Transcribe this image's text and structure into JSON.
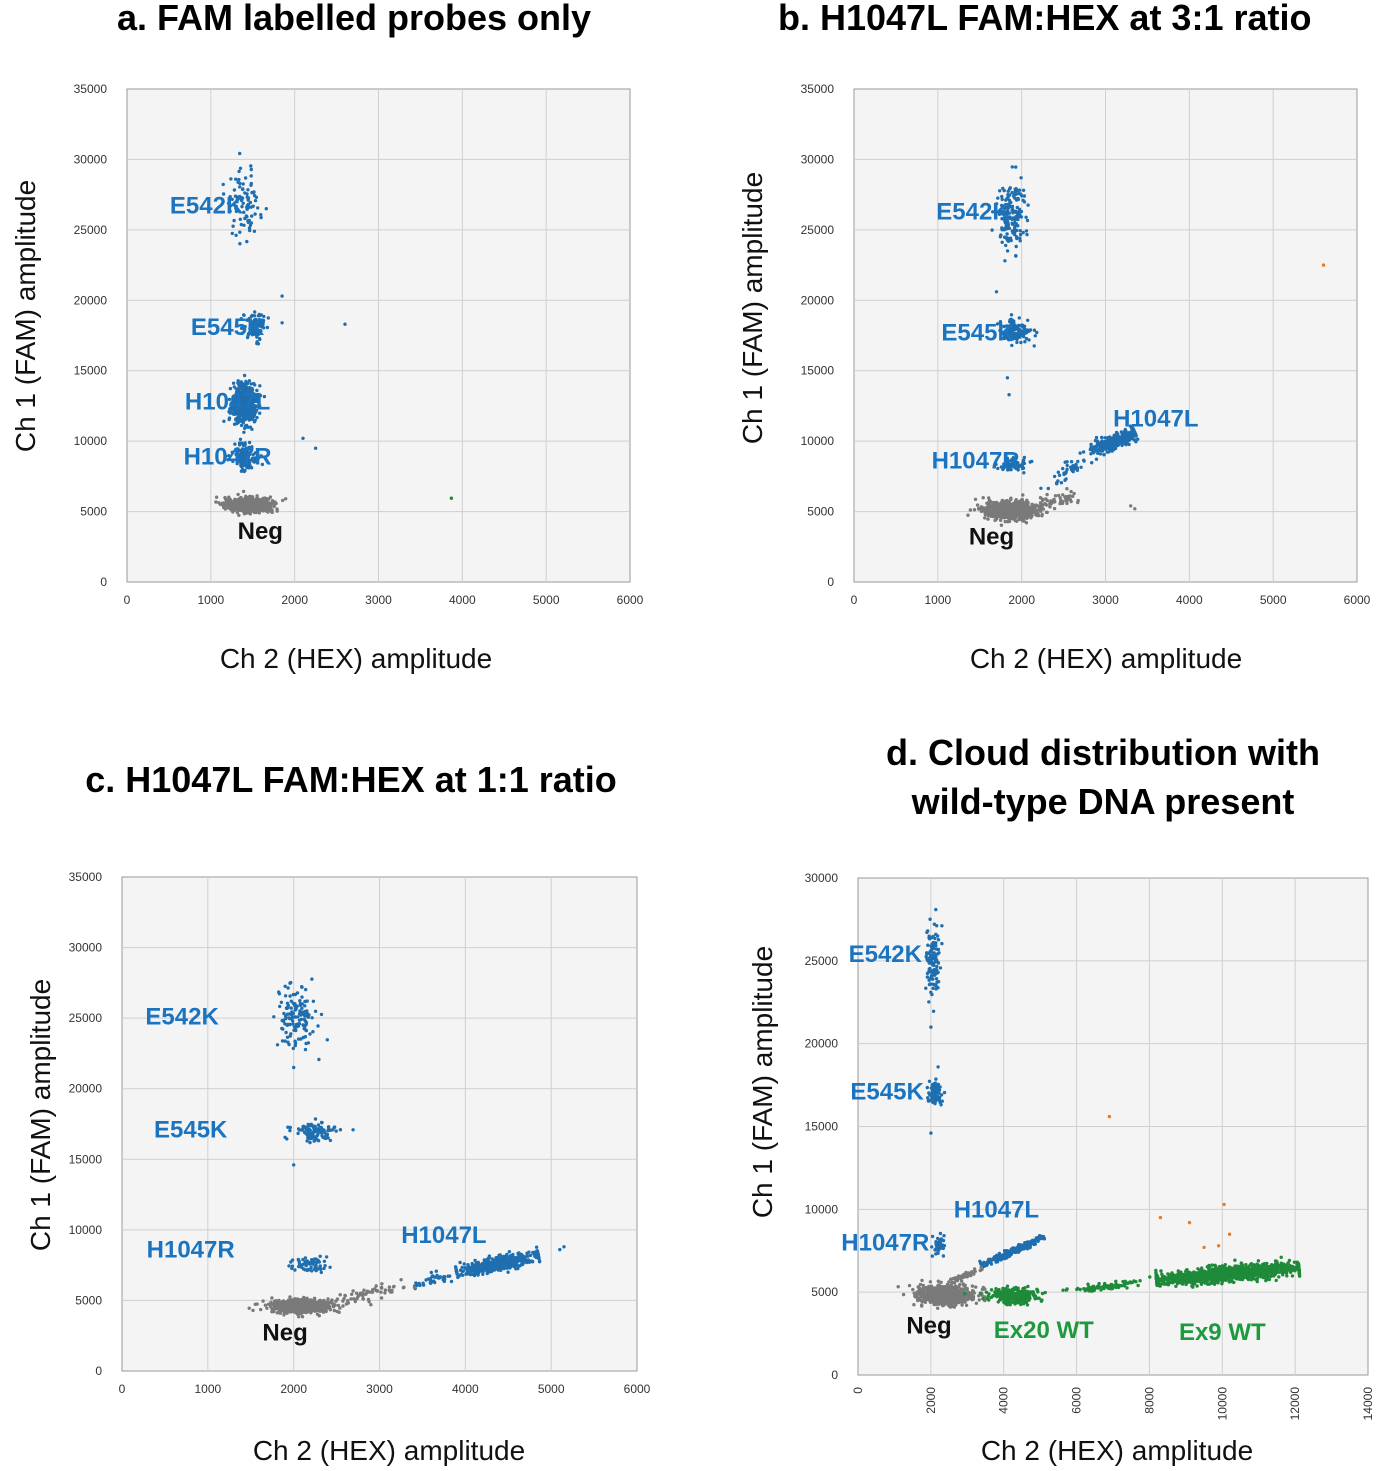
{
  "colors": {
    "mutant_blue": "#1f6fb0",
    "negative_gray": "#7a7a7a",
    "wildtype_green": "#1e8a3a",
    "outlier_orange": "#f07a1a",
    "label_blue": "#1a74c0",
    "label_green": "#1e9a3e",
    "label_black": "#111111"
  },
  "chart_data": [
    {
      "id": "a",
      "type": "scatter",
      "title": "a.  FAM labelled probes only",
      "xlabel": "Ch 2 (HEX) amplitude",
      "ylabel": "Ch 1 (FAM) amplitude",
      "xlim": [
        0,
        6000
      ],
      "ylim": [
        0,
        35000
      ],
      "xticks": [
        "0",
        "1000",
        "2000",
        "3000",
        "4000",
        "5000",
        "6000"
      ],
      "yticks": [
        "0",
        "5000",
        "10000",
        "15000",
        "20000",
        "25000",
        "30000",
        "35000"
      ],
      "clusters": [
        {
          "name": "E542K",
          "color": "blue",
          "n": 90,
          "cx": 1400,
          "cy": 26800,
          "sx": 100,
          "sy": 1200
        },
        {
          "name": "E545K",
          "color": "blue",
          "n": 110,
          "cx": 1530,
          "cy": 18200,
          "sx": 70,
          "sy": 500
        },
        {
          "name": "H1047L",
          "color": "blue",
          "n": 520,
          "cx": 1400,
          "cy": 12700,
          "sx": 75,
          "sy": 700
        },
        {
          "name": "H1047R",
          "color": "blue",
          "n": 130,
          "cx": 1400,
          "cy": 8900,
          "sx": 75,
          "sy": 450
        },
        {
          "name": "Neg",
          "color": "gray",
          "n": 650,
          "cx": 1450,
          "cy": 5500,
          "sx": 130,
          "sy": 250
        }
      ],
      "points": [
        {
          "x": 2600,
          "y": 18300,
          "color": "blue"
        },
        {
          "x": 1850,
          "y": 18400,
          "color": "blue"
        },
        {
          "x": 2100,
          "y": 10200,
          "color": "blue"
        },
        {
          "x": 2250,
          "y": 9500,
          "color": "blue"
        },
        {
          "x": 1850,
          "y": 20300,
          "color": "blue"
        },
        {
          "x": 3870,
          "y": 5950,
          "color": "green"
        }
      ],
      "labels": [
        {
          "text": "E542K",
          "x": 950,
          "y": 26600,
          "color": "blue"
        },
        {
          "text": "E545K",
          "x": 1200,
          "y": 18000,
          "color": "blue"
        },
        {
          "text": "H1047L",
          "x": 1200,
          "y": 12700,
          "color": "blue"
        },
        {
          "text": "H1047R",
          "x": 1200,
          "y": 8800,
          "color": "blue"
        },
        {
          "text": "Neg",
          "x": 1590,
          "y": 3500,
          "color": "black"
        }
      ]
    },
    {
      "id": "b",
      "type": "scatter",
      "title": "b. H1047L FAM:HEX at 3:1 ratio",
      "xlabel": "Ch 2 (HEX) amplitude",
      "ylabel": "Ch 1 (FAM) amplitude",
      "xlim": [
        0,
        6000
      ],
      "ylim": [
        0,
        35000
      ],
      "xticks": [
        "0",
        "1000",
        "2000",
        "3000",
        "4000",
        "5000",
        "6000"
      ],
      "yticks": [
        "0",
        "5000",
        "10000",
        "15000",
        "20000",
        "25000",
        "30000",
        "35000"
      ],
      "clusters": [
        {
          "name": "E542K",
          "color": "blue",
          "n": 160,
          "cx": 1870,
          "cy": 26100,
          "sx": 90,
          "sy": 1100
        },
        {
          "name": "E545K",
          "color": "blue",
          "n": 130,
          "cx": 1920,
          "cy": 17800,
          "sx": 90,
          "sy": 400
        },
        {
          "name": "H1047R",
          "color": "blue",
          "n": 60,
          "cx": 1900,
          "cy": 8300,
          "sx": 80,
          "sy": 250
        },
        {
          "name": "Neg",
          "color": "gray",
          "n": 700,
          "cx": 1880,
          "cy": 5100,
          "sx": 160,
          "sy": 300
        }
      ],
      "streaks": [
        {
          "name": "H1047L",
          "color": "blue",
          "n": 420,
          "x0": 2850,
          "y0": 9300,
          "x1": 3350,
          "y1": 10600,
          "sperp": 45,
          "spar": 0.55
        },
        {
          "name": "H1047L-tail",
          "color": "blue",
          "n": 45,
          "x0": 2250,
          "y0": 6500,
          "x1": 2850,
          "y1": 9300,
          "sperp": 50,
          "spar": 0.5
        },
        {
          "name": "neg-tail",
          "color": "gray",
          "n": 60,
          "x0": 2100,
          "y0": 5300,
          "x1": 2800,
          "y1": 6300,
          "sperp": 40,
          "spar": 0.5
        }
      ],
      "points": [
        {
          "x": 1700,
          "y": 20600,
          "color": "blue"
        },
        {
          "x": 1800,
          "y": 22800,
          "color": "blue"
        },
        {
          "x": 1850,
          "y": 13300,
          "color": "blue"
        },
        {
          "x": 1830,
          "y": 14500,
          "color": "blue"
        },
        {
          "x": 3300,
          "y": 5400,
          "color": "gray"
        },
        {
          "x": 3350,
          "y": 5200,
          "color": "gray"
        },
        {
          "x": 5600,
          "y": 22500,
          "color": "orange"
        }
      ],
      "labels": [
        {
          "text": "E542K",
          "x": 1420,
          "y": 26200,
          "color": "blue"
        },
        {
          "text": "E545K",
          "x": 1480,
          "y": 17600,
          "color": "blue"
        },
        {
          "text": "H1047L",
          "x": 3600,
          "y": 11500,
          "color": "blue"
        },
        {
          "text": "H1047R",
          "x": 1450,
          "y": 8500,
          "color": "blue"
        },
        {
          "text": "Neg",
          "x": 1640,
          "y": 3100,
          "color": "black"
        }
      ]
    },
    {
      "id": "c",
      "type": "scatter",
      "title": "c. H1047L FAM:HEX at 1:1 ratio",
      "xlabel": "Ch 2 (HEX) amplitude",
      "ylabel": "Ch 1 (FAM) amplitude",
      "xlim": [
        0,
        6000
      ],
      "ylim": [
        0,
        35000
      ],
      "xticks": [
        "0",
        "1000",
        "2000",
        "3000",
        "4000",
        "5000",
        "6000"
      ],
      "yticks": [
        "0",
        "5000",
        "10000",
        "15000",
        "20000",
        "25000",
        "30000",
        "35000"
      ],
      "clusters": [
        {
          "name": "E542K",
          "color": "blue",
          "n": 140,
          "cx": 2050,
          "cy": 25000,
          "sx": 110,
          "sy": 1200
        },
        {
          "name": "E545K",
          "color": "blue",
          "n": 110,
          "cx": 2250,
          "cy": 17000,
          "sx": 110,
          "sy": 330
        },
        {
          "name": "H1047R",
          "color": "blue",
          "n": 70,
          "cx": 2180,
          "cy": 7600,
          "sx": 110,
          "sy": 250
        },
        {
          "name": "Neg",
          "color": "gray",
          "n": 750,
          "cx": 2100,
          "cy": 4600,
          "sx": 170,
          "sy": 220
        }
      ],
      "streaks": [
        {
          "name": "H1047L",
          "color": "blue",
          "n": 500,
          "x0": 3900,
          "y0": 7000,
          "x1": 4850,
          "y1": 8200,
          "sperp": 45,
          "spar": 0.6
        },
        {
          "name": "H1047L-tail",
          "color": "blue",
          "n": 40,
          "x0": 3400,
          "y0": 6200,
          "x1": 3900,
          "y1": 7000,
          "sperp": 40,
          "spar": 0.5
        },
        {
          "name": "neg-tail",
          "color": "gray",
          "n": 60,
          "x0": 2400,
          "y0": 5000,
          "x1": 3400,
          "y1": 6200,
          "sperp": 40,
          "spar": 0.5
        }
      ],
      "points": [
        {
          "x": 2000,
          "y": 14600,
          "color": "blue"
        },
        {
          "x": 2000,
          "y": 21500,
          "color": "blue"
        },
        {
          "x": 5100,
          "y": 8600,
          "color": "blue"
        },
        {
          "x": 5150,
          "y": 8800,
          "color": "blue"
        },
        {
          "x": 2900,
          "y": 4700,
          "color": "gray"
        }
      ],
      "labels": [
        {
          "text": "E542K",
          "x": 700,
          "y": 25000,
          "color": "blue"
        },
        {
          "text": "E545K",
          "x": 800,
          "y": 17000,
          "color": "blue"
        },
        {
          "text": "H1047L",
          "x": 3750,
          "y": 9500,
          "color": "blue"
        },
        {
          "text": "H1047R",
          "x": 800,
          "y": 8500,
          "color": "blue"
        },
        {
          "text": "Neg",
          "x": 1900,
          "y": 2600,
          "color": "black"
        }
      ]
    },
    {
      "id": "d",
      "type": "scatter",
      "title": [
        "d. Cloud distribution with",
        "wild-type DNA present"
      ],
      "xlabel": "Ch 2 (HEX) amplitude",
      "ylabel": "Ch 1 (FAM) amplitude",
      "xlim": [
        0,
        14000
      ],
      "ylim": [
        0,
        30000
      ],
      "xticks": [
        "0",
        "2000",
        "4000",
        "6000",
        "8000",
        "10000",
        "12000",
        "14000"
      ],
      "yticks": [
        "0",
        "5000",
        "10000",
        "15000",
        "20000",
        "25000",
        "30000"
      ],
      "clusters": [
        {
          "name": "E542K",
          "color": "blue",
          "n": 120,
          "cx": 2050,
          "cy": 25000,
          "sx": 90,
          "sy": 1200
        },
        {
          "name": "E545K",
          "color": "blue",
          "n": 90,
          "cx": 2120,
          "cy": 17000,
          "sx": 90,
          "sy": 350
        },
        {
          "name": "H1047R",
          "color": "blue",
          "n": 50,
          "cx": 2200,
          "cy": 7800,
          "sx": 80,
          "sy": 300
        },
        {
          "name": "Neg",
          "color": "gray",
          "n": 650,
          "cx": 2400,
          "cy": 4800,
          "sx": 400,
          "sy": 300
        },
        {
          "name": "Ex20 WT",
          "color": "green",
          "n": 300,
          "cx": 4300,
          "cy": 4800,
          "sx": 350,
          "sy": 220
        }
      ],
      "streaks": [
        {
          "name": "H1047L",
          "color": "blue",
          "n": 280,
          "x0": 3400,
          "y0": 6600,
          "x1": 5100,
          "y1": 8300,
          "sperp": 45,
          "spar": 0.6
        },
        {
          "name": "Ex9 WT",
          "color": "green",
          "n": 1300,
          "x0": 8200,
          "y0": 5700,
          "x1": 12100,
          "y1": 6500,
          "sperp": 110,
          "spar": 0.6
        },
        {
          "name": "Ex9 WT-tail",
          "color": "green",
          "n": 80,
          "x0": 5500,
          "y0": 5000,
          "x1": 8200,
          "y1": 5700,
          "sperp": 60,
          "spar": 0.5
        },
        {
          "name": "neg-tail",
          "color": "gray",
          "n": 40,
          "x0": 2500,
          "y0": 5600,
          "x1": 3400,
          "y1": 6400,
          "sperp": 40,
          "spar": 0.5
        }
      ],
      "points": [
        {
          "x": 2000,
          "y": 14600,
          "color": "blue"
        },
        {
          "x": 2200,
          "y": 18600,
          "color": "blue"
        },
        {
          "x": 2000,
          "y": 21000,
          "color": "blue"
        },
        {
          "x": 6900,
          "y": 15600,
          "color": "orange"
        },
        {
          "x": 8300,
          "y": 9500,
          "color": "orange"
        },
        {
          "x": 9100,
          "y": 9200,
          "color": "orange"
        },
        {
          "x": 10050,
          "y": 10300,
          "color": "orange"
        },
        {
          "x": 10200,
          "y": 8500,
          "color": "orange"
        },
        {
          "x": 9900,
          "y": 7800,
          "color": "orange"
        },
        {
          "x": 9500,
          "y": 7700,
          "color": "orange"
        }
      ],
      "labels": [
        {
          "text": "E542K",
          "x": 750,
          "y": 25300,
          "color": "blue"
        },
        {
          "text": "E545K",
          "x": 800,
          "y": 17000,
          "color": "blue"
        },
        {
          "text": "H1047L",
          "x": 3800,
          "y": 9900,
          "color": "blue"
        },
        {
          "text": "H1047R",
          "x": 750,
          "y": 7900,
          "color": "blue"
        },
        {
          "text": "Neg",
          "x": 1950,
          "y": 2900,
          "color": "black"
        },
        {
          "text": "Ex20 WT",
          "x": 5100,
          "y": 2600,
          "color": "green"
        },
        {
          "text": "Ex9 WT",
          "x": 10000,
          "y": 2500,
          "color": "green"
        }
      ]
    }
  ]
}
